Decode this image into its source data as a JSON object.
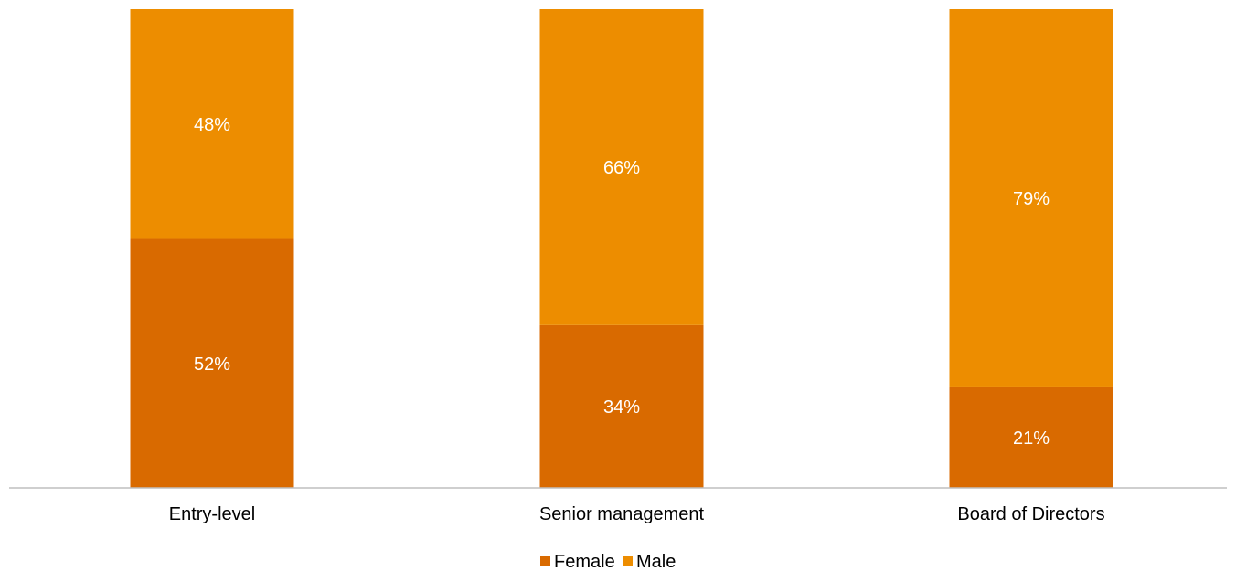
{
  "chart_data": {
    "type": "bar",
    "stacked": true,
    "percent_stacked": true,
    "categories": [
      "Entry-level",
      "Senior management",
      "Board of Directors"
    ],
    "series": [
      {
        "name": "Female",
        "color": "#D96A00",
        "values": [
          52,
          34,
          21
        ],
        "labels": [
          "52%",
          "34%",
          "21%"
        ]
      },
      {
        "name": "Male",
        "color": "#ED8D00",
        "values": [
          48,
          66,
          79
        ],
        "labels": [
          "48%",
          "66%",
          "79%"
        ]
      }
    ],
    "ylim": [
      0,
      100
    ],
    "axis_color": "#BFBFBF",
    "grid": false,
    "legend": {
      "position": "bottom",
      "items": [
        "Female",
        "Male"
      ]
    },
    "title": "",
    "xlabel": "",
    "ylabel": ""
  }
}
